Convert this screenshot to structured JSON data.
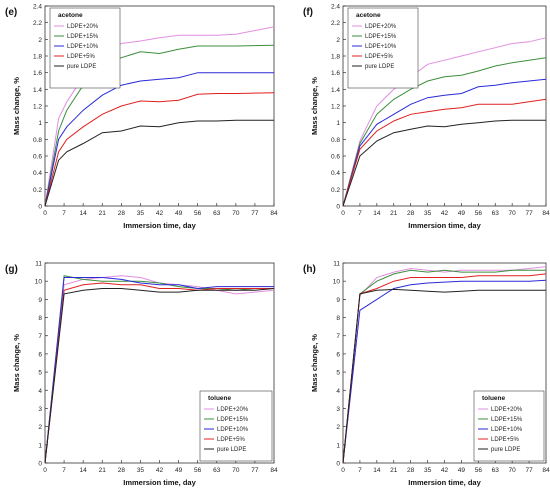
{
  "chart_data": [
    {
      "panel_label": "(e)",
      "type": "line",
      "xlabel": "Immersion time, day",
      "ylabel": "Mass change, %",
      "x_ticks": [
        0,
        7,
        14,
        21,
        28,
        35,
        42,
        49,
        56,
        63,
        70,
        77,
        84
      ],
      "xlim": [
        0,
        84
      ],
      "ylim": [
        0,
        2.4
      ],
      "y_ticks": [
        "0",
        "0.2",
        "0.4",
        "0.6",
        "0.8",
        "1",
        "1.2",
        "1.4",
        "1.6",
        "1.8",
        "2",
        "2.2",
        "2.4"
      ],
      "legend_title": "acetone",
      "legend_position": "top-left",
      "x": [
        0,
        5,
        8,
        14,
        21,
        28,
        35,
        42,
        49,
        56,
        63,
        70,
        84
      ],
      "series": [
        {
          "name": "LDPE+20%",
          "color": "#e08fe0",
          "values": [
            0,
            1.05,
            1.25,
            1.55,
            1.85,
            1.95,
            1.98,
            2.02,
            2.05,
            2.05,
            2.05,
            2.06,
            2.15
          ]
        },
        {
          "name": "LDPE+15%",
          "color": "#3c8f3c",
          "values": [
            0,
            0.9,
            1.15,
            1.45,
            1.68,
            1.78,
            1.85,
            1.83,
            1.88,
            1.92,
            1.92,
            1.92,
            1.93
          ]
        },
        {
          "name": "LDPE+10%",
          "color": "#2a2ad8",
          "values": [
            0,
            0.8,
            0.95,
            1.15,
            1.33,
            1.45,
            1.5,
            1.52,
            1.54,
            1.6,
            1.6,
            1.6,
            1.6
          ]
        },
        {
          "name": "LDPE+5%",
          "color": "#e02020",
          "values": [
            0,
            0.65,
            0.8,
            0.95,
            1.1,
            1.2,
            1.26,
            1.25,
            1.27,
            1.34,
            1.35,
            1.35,
            1.36
          ]
        },
        {
          "name": "pure LDPE",
          "color": "#222222",
          "values": [
            0,
            0.55,
            0.65,
            0.75,
            0.88,
            0.9,
            0.96,
            0.95,
            1.0,
            1.02,
            1.02,
            1.03,
            1.03
          ]
        }
      ]
    },
    {
      "panel_label": "(f)",
      "type": "line",
      "xlabel": "Immersion time, day",
      "ylabel": "Mass change, %",
      "x_ticks": [
        0,
        7,
        14,
        21,
        28,
        35,
        42,
        49,
        56,
        63,
        70,
        77,
        84
      ],
      "xlim": [
        0,
        84
      ],
      "ylim": [
        0,
        2.4
      ],
      "y_ticks": [
        "0",
        "0.2",
        "0.4",
        "0.6",
        "0.8",
        "1",
        "1.2",
        "1.4",
        "1.6",
        "1.8",
        "2",
        "2.2",
        "2.4"
      ],
      "legend_title": "acetone",
      "legend_position": "top-left",
      "x": [
        0,
        7,
        14,
        21,
        28,
        35,
        42,
        49,
        56,
        63,
        70,
        77,
        84
      ],
      "series": [
        {
          "name": "LDPE+20%",
          "color": "#e08fe0",
          "values": [
            0,
            0.78,
            1.2,
            1.4,
            1.55,
            1.7,
            1.75,
            1.8,
            1.85,
            1.9,
            1.95,
            1.97,
            2.02
          ]
        },
        {
          "name": "LDPE+15%",
          "color": "#3c8f3c",
          "values": [
            0,
            0.75,
            1.1,
            1.28,
            1.4,
            1.5,
            1.55,
            1.57,
            1.62,
            1.68,
            1.72,
            1.75,
            1.78
          ]
        },
        {
          "name": "LDPE+10%",
          "color": "#2a2ad8",
          "values": [
            0,
            0.72,
            0.98,
            1.1,
            1.22,
            1.3,
            1.33,
            1.35,
            1.43,
            1.45,
            1.48,
            1.5,
            1.52
          ]
        },
        {
          "name": "LDPE+5%",
          "color": "#e02020",
          "values": [
            0,
            0.68,
            0.9,
            1.02,
            1.1,
            1.13,
            1.16,
            1.18,
            1.22,
            1.22,
            1.22,
            1.25,
            1.28
          ]
        },
        {
          "name": "pure LDPE",
          "color": "#222222",
          "values": [
            0,
            0.6,
            0.78,
            0.88,
            0.92,
            0.96,
            0.95,
            0.98,
            1.0,
            1.02,
            1.03,
            1.03,
            1.03
          ]
        }
      ]
    },
    {
      "panel_label": "(g)",
      "type": "line",
      "xlabel": "Immersion time, day",
      "ylabel": "Mass change, %",
      "x_ticks": [
        0,
        7,
        14,
        21,
        28,
        35,
        42,
        49,
        56,
        63,
        70,
        77,
        84
      ],
      "xlim": [
        0,
        84
      ],
      "ylim": [
        0,
        11
      ],
      "y_ticks": [
        "0",
        "1",
        "2",
        "3",
        "4",
        "5",
        "6",
        "7",
        "8",
        "9",
        "10",
        "11"
      ],
      "legend_title": "toluene",
      "legend_position": "bottom-right",
      "x": [
        0,
        7,
        14,
        21,
        28,
        35,
        42,
        49,
        56,
        63,
        70,
        77,
        84
      ],
      "series": [
        {
          "name": "LDPE+20%",
          "color": "#e08fe0",
          "values": [
            0,
            9.8,
            10.1,
            10.2,
            10.3,
            10.2,
            9.9,
            9.8,
            9.7,
            9.5,
            9.3,
            9.4,
            9.5
          ]
        },
        {
          "name": "LDPE+15%",
          "color": "#3c8f3c",
          "values": [
            0,
            10.3,
            10.1,
            10.0,
            10.0,
            10.0,
            9.9,
            9.7,
            9.6,
            9.6,
            9.5,
            9.6,
            9.6
          ]
        },
        {
          "name": "LDPE+10%",
          "color": "#2a2ad8",
          "values": [
            0,
            10.2,
            10.2,
            10.2,
            10.1,
            9.9,
            9.8,
            9.8,
            9.6,
            9.7,
            9.7,
            9.7,
            9.7
          ]
        },
        {
          "name": "LDPE+5%",
          "color": "#e02020",
          "values": [
            0,
            9.5,
            9.8,
            9.9,
            9.8,
            9.8,
            9.6,
            9.6,
            9.5,
            9.6,
            9.6,
            9.6,
            9.6
          ]
        },
        {
          "name": "pure LDPE",
          "color": "#222222",
          "values": [
            0,
            9.3,
            9.5,
            9.6,
            9.6,
            9.5,
            9.4,
            9.4,
            9.5,
            9.5,
            9.5,
            9.5,
            9.6
          ]
        }
      ]
    },
    {
      "panel_label": "(h)",
      "type": "line",
      "xlabel": "Immersion time, day",
      "ylabel": "Mass change, %",
      "x_ticks": [
        0,
        7,
        14,
        21,
        28,
        35,
        42,
        49,
        56,
        63,
        70,
        77,
        84
      ],
      "xlim": [
        0,
        84
      ],
      "ylim": [
        0,
        11
      ],
      "y_ticks": [
        "0",
        "1",
        "2",
        "3",
        "4",
        "5",
        "6",
        "7",
        "8",
        "9",
        "10",
        "11"
      ],
      "legend_title": "toluene",
      "legend_position": "bottom-right",
      "x": [
        0,
        7,
        14,
        21,
        28,
        35,
        42,
        49,
        56,
        63,
        70,
        77,
        84
      ],
      "series": [
        {
          "name": "LDPE+20%",
          "color": "#e08fe0",
          "values": [
            0,
            9.2,
            10.2,
            10.5,
            10.7,
            10.6,
            10.5,
            10.6,
            10.6,
            10.6,
            10.6,
            10.7,
            10.8
          ]
        },
        {
          "name": "LDPE+15%",
          "color": "#3c8f3c",
          "values": [
            0,
            9.3,
            10.0,
            10.4,
            10.6,
            10.5,
            10.6,
            10.5,
            10.5,
            10.5,
            10.6,
            10.6,
            10.6
          ]
        },
        {
          "name": "LDPE+10%",
          "color": "#2a2ad8",
          "values": [
            0,
            8.4,
            9.0,
            9.6,
            9.8,
            9.9,
            9.95,
            10.0,
            10.0,
            10.0,
            10.0,
            10.0,
            10.05
          ]
        },
        {
          "name": "LDPE+5%",
          "color": "#e02020",
          "values": [
            0,
            9.3,
            9.6,
            10.0,
            10.2,
            10.2,
            10.2,
            10.2,
            10.3,
            10.3,
            10.3,
            10.3,
            10.4
          ]
        },
        {
          "name": "pure LDPE",
          "color": "#222222",
          "values": [
            0,
            9.3,
            9.5,
            9.55,
            9.5,
            9.45,
            9.4,
            9.45,
            9.5,
            9.5,
            9.5,
            9.5,
            9.5
          ]
        }
      ]
    }
  ]
}
